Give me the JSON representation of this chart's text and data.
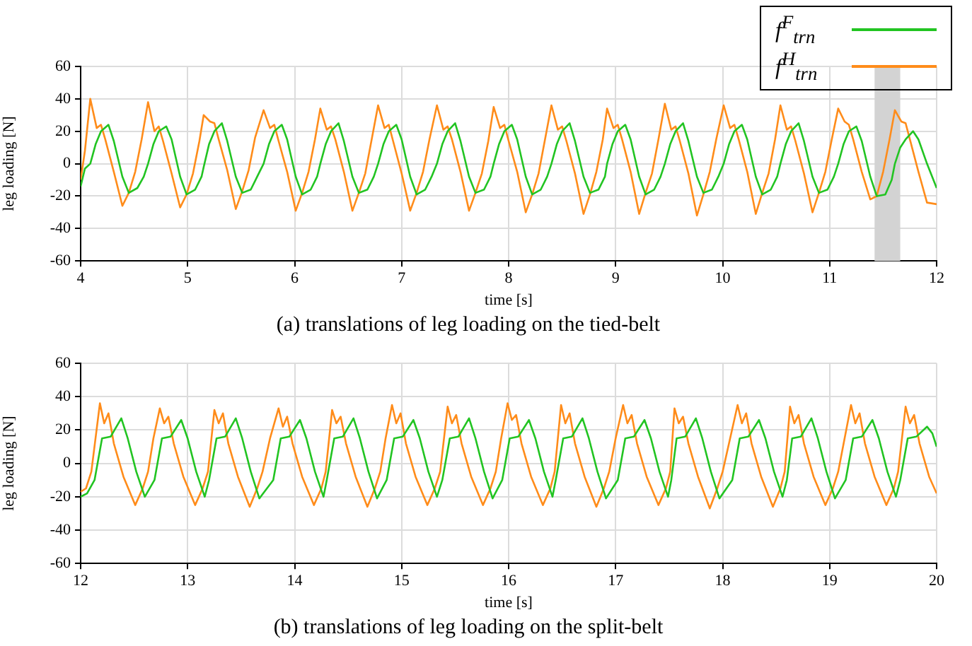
{
  "chart_data": [
    {
      "type": "line",
      "title": "(a) translations of leg loading on the tied-belt",
      "xlabel": "time [s]",
      "ylabel": "leg loading [N]",
      "xlim": [
        4,
        12
      ],
      "xticks": [
        4,
        5,
        6,
        7,
        8,
        9,
        10,
        11,
        12
      ],
      "ylim": [
        -60,
        60
      ],
      "yticks": [
        -60,
        -40,
        -20,
        0,
        20,
        40,
        60
      ],
      "grid": true,
      "legend": "top right",
      "bands": [
        {
          "axis": "x",
          "from": 11.42,
          "to": 11.66,
          "color": "#d3d3d3"
        }
      ],
      "series": [
        {
          "name": "f$^{F}$$_{trn}$",
          "color": "#22c422",
          "x": [
            4.0,
            4.04,
            4.09,
            4.14,
            4.19,
            4.26,
            4.31,
            4.39,
            4.45,
            4.53,
            4.59,
            4.63,
            4.68,
            4.73,
            4.8,
            4.85,
            4.93,
            4.99,
            5.07,
            5.13,
            5.15,
            5.2,
            5.25,
            5.32,
            5.37,
            5.45,
            5.51,
            5.59,
            5.65,
            5.71,
            5.76,
            5.81,
            5.88,
            5.93,
            6.01,
            6.07,
            6.15,
            6.21,
            6.24,
            6.29,
            6.34,
            6.41,
            6.46,
            6.54,
            6.6,
            6.68,
            6.74,
            6.78,
            6.83,
            6.88,
            6.95,
            7.0,
            7.08,
            7.14,
            7.22,
            7.28,
            7.33,
            7.38,
            7.43,
            7.5,
            7.55,
            7.63,
            7.69,
            7.77,
            7.83,
            7.86,
            7.91,
            7.96,
            8.03,
            8.08,
            8.16,
            8.22,
            8.3,
            8.36,
            8.4,
            8.45,
            8.5,
            8.57,
            8.62,
            8.7,
            8.76,
            8.84,
            8.9,
            8.92,
            8.97,
            9.02,
            9.09,
            9.14,
            9.22,
            9.28,
            9.36,
            9.42,
            9.46,
            9.51,
            9.56,
            9.63,
            9.68,
            9.76,
            9.82,
            9.9,
            9.96,
            10.01,
            10.06,
            10.11,
            10.18,
            10.23,
            10.31,
            10.37,
            10.45,
            10.51,
            10.54,
            10.59,
            10.64,
            10.71,
            10.76,
            10.84,
            10.9,
            10.98,
            11.04,
            11.08,
            11.13,
            11.18,
            11.25,
            11.3,
            11.38,
            11.44,
            11.52,
            11.58,
            11.61,
            11.66,
            11.71,
            11.78,
            11.83,
            11.91,
            12.0
          ],
          "values": [
            -14,
            -3,
            0,
            12,
            20,
            24,
            14,
            -8,
            -18,
            -15,
            -8,
            0,
            12,
            20,
            23,
            15,
            -8,
            -19,
            -16,
            -8,
            -2,
            12,
            20,
            25,
            14,
            -8,
            -18,
            -16,
            -8,
            0,
            12,
            20,
            24,
            15,
            -8,
            -19,
            -16,
            -8,
            0,
            12,
            20,
            25,
            14,
            -8,
            -18,
            -16,
            -8,
            0,
            12,
            20,
            24,
            15,
            -8,
            -19,
            -16,
            -8,
            0,
            12,
            20,
            25,
            14,
            -8,
            -18,
            -16,
            -8,
            0,
            12,
            20,
            24,
            15,
            -8,
            -19,
            -16,
            -8,
            0,
            12,
            20,
            25,
            14,
            -8,
            -18,
            -16,
            -8,
            0,
            12,
            20,
            24,
            15,
            -8,
            -19,
            -16,
            -8,
            0,
            12,
            20,
            25,
            14,
            -8,
            -18,
            -16,
            -8,
            0,
            12,
            20,
            24,
            15,
            -8,
            -19,
            -16,
            -8,
            0,
            12,
            20,
            25,
            14,
            -8,
            -18,
            -16,
            -8,
            0,
            12,
            20,
            23,
            14,
            -8,
            -20,
            -19,
            -10,
            0,
            10,
            15,
            20,
            15,
            0,
            -15
          ]
        },
        {
          "name": "f$^{H}$$_{trn}$",
          "color": "#ff8c1a",
          "x": [
            4.0,
            4.04,
            4.09,
            4.15,
            4.19,
            4.23,
            4.31,
            4.39,
            4.45,
            4.51,
            4.57,
            4.63,
            4.69,
            4.73,
            4.77,
            4.85,
            4.93,
            4.99,
            5.05,
            5.11,
            5.15,
            5.21,
            5.25,
            5.29,
            5.37,
            5.45,
            5.51,
            5.57,
            5.63,
            5.71,
            5.77,
            5.81,
            5.85,
            5.93,
            6.01,
            6.07,
            6.13,
            6.19,
            6.24,
            6.3,
            6.34,
            6.38,
            6.46,
            6.54,
            6.6,
            6.66,
            6.72,
            6.78,
            6.84,
            6.88,
            6.92,
            7.0,
            7.08,
            7.14,
            7.2,
            7.26,
            7.33,
            7.39,
            7.43,
            7.47,
            7.55,
            7.63,
            7.69,
            7.75,
            7.81,
            7.86,
            7.92,
            7.96,
            8.0,
            8.08,
            8.16,
            8.22,
            8.28,
            8.34,
            8.4,
            8.46,
            8.5,
            8.54,
            8.62,
            8.7,
            8.76,
            8.82,
            8.88,
            8.92,
            8.98,
            9.02,
            9.06,
            9.14,
            9.22,
            9.28,
            9.34,
            9.4,
            9.46,
            9.52,
            9.56,
            9.6,
            9.68,
            9.76,
            9.82,
            9.88,
            9.94,
            10.01,
            10.07,
            10.11,
            10.15,
            10.23,
            10.31,
            10.37,
            10.43,
            10.49,
            10.54,
            10.6,
            10.64,
            10.68,
            10.76,
            10.84,
            10.9,
            10.96,
            11.02,
            11.08,
            11.14,
            11.18,
            11.22,
            11.3,
            11.38,
            11.44,
            11.5,
            11.56,
            11.61,
            11.67,
            11.71,
            11.75,
            11.83,
            11.91,
            12.0
          ],
          "values": [
            -10,
            8,
            40,
            22,
            24,
            15,
            -5,
            -26,
            -18,
            -5,
            15,
            38,
            20,
            23,
            14,
            -6,
            -27,
            -19,
            -6,
            14,
            30,
            26,
            25,
            15,
            -4,
            -28,
            -17,
            -4,
            16,
            33,
            22,
            24,
            14,
            -5,
            -29,
            -18,
            -5,
            15,
            34,
            21,
            23,
            15,
            -5,
            -29,
            -18,
            -6,
            15,
            36,
            22,
            24,
            14,
            -6,
            -29,
            -18,
            -5,
            15,
            36,
            21,
            23,
            15,
            -5,
            -29,
            -18,
            -6,
            14,
            35,
            22,
            24,
            14,
            -5,
            -30,
            -19,
            -6,
            15,
            36,
            21,
            23,
            14,
            -6,
            -31,
            -19,
            -5,
            15,
            34,
            22,
            24,
            15,
            -5,
            -31,
            -18,
            -6,
            15,
            37,
            21,
            23,
            14,
            -6,
            -32,
            -19,
            -5,
            15,
            36,
            22,
            24,
            15,
            -5,
            -31,
            -18,
            -6,
            15,
            36,
            21,
            23,
            14,
            -6,
            -30,
            -18,
            -5,
            15,
            34,
            26,
            24,
            15,
            -5,
            -22,
            -20,
            -5,
            15,
            33,
            26,
            25,
            15,
            -5,
            -24,
            -25
          ]
        }
      ]
    },
    {
      "type": "line",
      "title": "(b) translations of leg loading on the split-belt",
      "xlabel": "time [s]",
      "ylabel": "leg loading [N]",
      "xlim": [
        12,
        20
      ],
      "xticks": [
        12,
        13,
        14,
        15,
        16,
        17,
        18,
        19,
        20
      ],
      "ylim": [
        -60,
        60
      ],
      "yticks": [
        -60,
        -40,
        -20,
        0,
        20,
        40,
        60
      ],
      "grid": true,
      "series": [
        {
          "color": "#22c422",
          "x": [
            12.0,
            12.06,
            12.13,
            12.2,
            12.28,
            12.38,
            12.44,
            12.52,
            12.6,
            12.69,
            12.76,
            12.84,
            12.94,
            13.0,
            13.08,
            13.16,
            13.2,
            13.27,
            13.35,
            13.45,
            13.51,
            13.59,
            13.67,
            13.8,
            13.87,
            13.95,
            14.05,
            14.11,
            14.19,
            14.27,
            14.3,
            14.37,
            14.45,
            14.55,
            14.61,
            14.69,
            14.77,
            14.86,
            14.93,
            15.01,
            15.11,
            15.17,
            15.25,
            15.33,
            15.38,
            15.45,
            15.53,
            15.63,
            15.69,
            15.77,
            15.85,
            15.94,
            16.01,
            16.09,
            16.19,
            16.25,
            16.33,
            16.41,
            16.44,
            16.51,
            16.59,
            16.69,
            16.75,
            16.83,
            16.91,
            17.02,
            17.09,
            17.17,
            17.27,
            17.33,
            17.41,
            17.49,
            17.52,
            17.57,
            17.65,
            17.75,
            17.81,
            17.89,
            17.97,
            18.09,
            18.16,
            18.24,
            18.34,
            18.4,
            18.48,
            18.56,
            18.6,
            18.65,
            18.73,
            18.83,
            18.89,
            18.97,
            19.05,
            19.15,
            19.22,
            19.3,
            19.4,
            19.46,
            19.54,
            19.62,
            19.66,
            19.73,
            19.81,
            19.91,
            19.96,
            20.0
          ],
          "values": [
            -20,
            -18,
            -10,
            15,
            16,
            27,
            15,
            -5,
            -20,
            -10,
            15,
            16,
            26,
            15,
            -5,
            -20,
            -10,
            15,
            16,
            27,
            15,
            -5,
            -21,
            -10,
            15,
            16,
            26,
            15,
            -5,
            -20,
            -10,
            15,
            16,
            27,
            15,
            -5,
            -21,
            -10,
            15,
            16,
            26,
            15,
            -5,
            -20,
            -10,
            15,
            16,
            27,
            15,
            -5,
            -21,
            -10,
            15,
            16,
            26,
            15,
            -5,
            -20,
            -10,
            15,
            16,
            27,
            15,
            -5,
            -21,
            -10,
            15,
            16,
            26,
            15,
            -5,
            -20,
            -10,
            15,
            16,
            27,
            15,
            -5,
            -21,
            -10,
            15,
            16,
            26,
            15,
            -5,
            -20,
            -10,
            15,
            16,
            27,
            15,
            -5,
            -21,
            -10,
            15,
            16,
            26,
            15,
            -5,
            -20,
            -10,
            15,
            16,
            22,
            18,
            10
          ]
        },
        {
          "color": "#ff8c1a",
          "x": [
            12.0,
            12.05,
            12.1,
            12.18,
            12.22,
            12.26,
            12.31,
            12.4,
            12.51,
            12.58,
            12.63,
            12.68,
            12.74,
            12.78,
            12.82,
            12.87,
            12.96,
            13.07,
            13.14,
            13.19,
            13.25,
            13.29,
            13.33,
            13.38,
            13.47,
            13.58,
            13.65,
            13.7,
            13.77,
            13.85,
            13.89,
            13.93,
            13.98,
            14.07,
            14.18,
            14.25,
            14.29,
            14.35,
            14.39,
            14.43,
            14.48,
            14.57,
            14.68,
            14.75,
            14.8,
            14.85,
            14.91,
            14.95,
            14.99,
            15.04,
            15.13,
            15.24,
            15.31,
            15.36,
            15.43,
            15.47,
            15.51,
            15.56,
            15.65,
            15.76,
            15.83,
            15.88,
            15.93,
            15.99,
            16.03,
            16.07,
            16.12,
            16.21,
            16.32,
            16.39,
            16.43,
            16.49,
            16.53,
            16.57,
            16.62,
            16.71,
            16.82,
            16.89,
            16.94,
            17.0,
            17.07,
            17.11,
            17.15,
            17.2,
            17.29,
            17.4,
            17.47,
            17.51,
            17.55,
            17.59,
            17.63,
            17.68,
            17.77,
            17.88,
            17.95,
            18.0,
            18.07,
            18.14,
            18.18,
            18.22,
            18.27,
            18.36,
            18.47,
            18.54,
            18.58,
            18.63,
            18.67,
            18.71,
            18.76,
            18.85,
            18.96,
            19.03,
            19.08,
            19.14,
            19.2,
            19.24,
            19.28,
            19.33,
            19.42,
            19.53,
            19.6,
            19.64,
            19.71,
            19.75,
            19.79,
            19.84,
            19.93,
            20.0
          ],
          "values": [
            -17,
            -15,
            -5,
            36,
            24,
            30,
            12,
            -8,
            -25,
            -15,
            -5,
            15,
            33,
            24,
            28,
            12,
            -8,
            -25,
            -15,
            -5,
            32,
            24,
            30,
            12,
            -8,
            -26,
            -15,
            -5,
            15,
            33,
            22,
            28,
            12,
            -8,
            -25,
            -15,
            -5,
            32,
            24,
            28,
            12,
            -8,
            -26,
            -15,
            -5,
            15,
            35,
            24,
            30,
            12,
            -8,
            -25,
            -15,
            -5,
            34,
            24,
            29,
            12,
            -8,
            -25,
            -15,
            -5,
            15,
            36,
            26,
            29,
            12,
            -8,
            -25,
            -15,
            -5,
            35,
            24,
            30,
            12,
            -8,
            -26,
            -15,
            -5,
            15,
            35,
            24,
            29,
            12,
            -8,
            -25,
            -15,
            -5,
            33,
            24,
            28,
            12,
            -8,
            -27,
            -15,
            -5,
            15,
            35,
            24,
            30,
            12,
            -8,
            -26,
            -15,
            -5,
            34,
            24,
            29,
            12,
            -8,
            -25,
            -15,
            -5,
            15,
            35,
            24,
            30,
            12,
            -8,
            -25,
            -15,
            -5,
            34,
            24,
            29,
            12,
            -8,
            -18
          ]
        }
      ]
    }
  ]
}
